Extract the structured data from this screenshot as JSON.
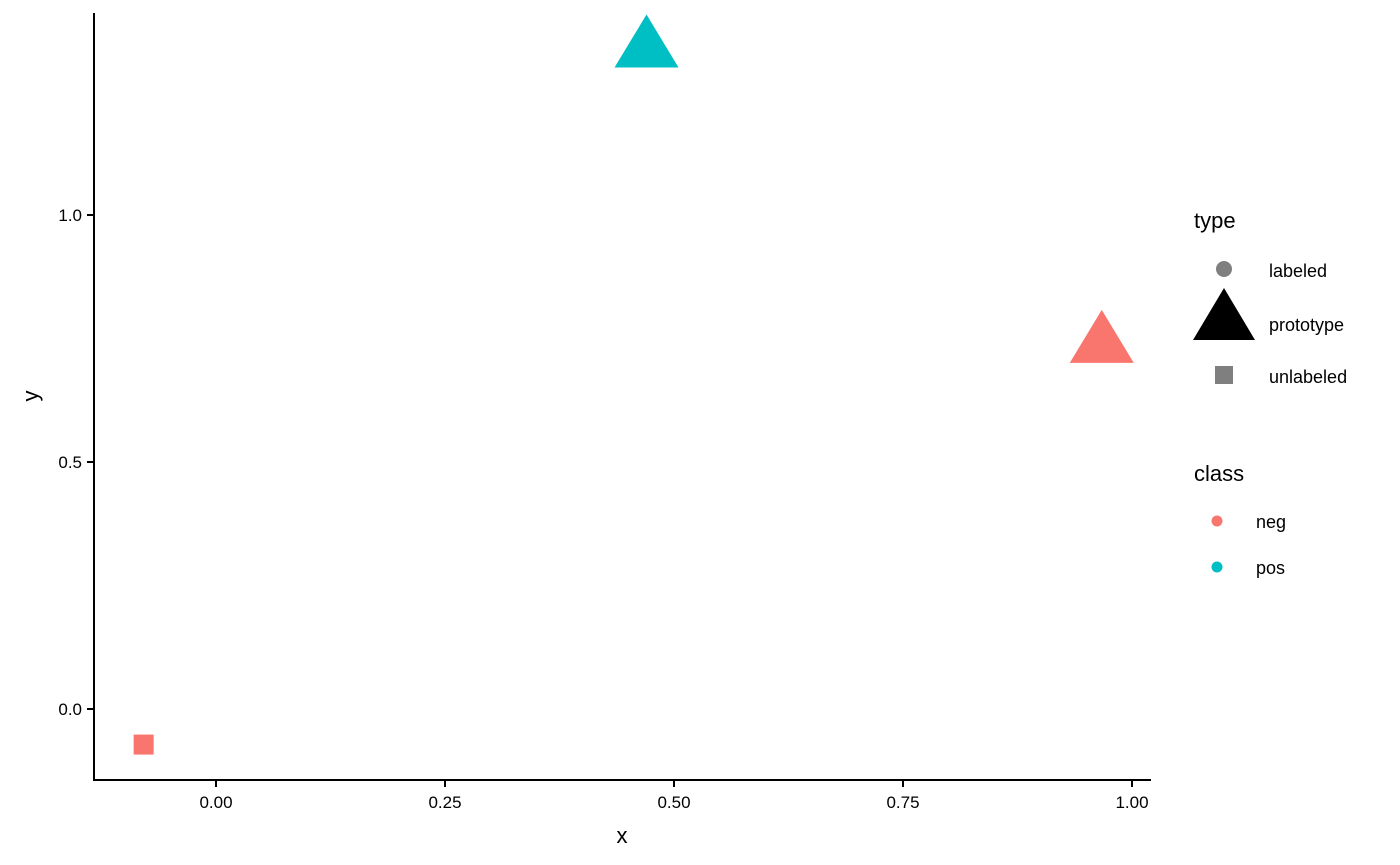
{
  "chart_data": {
    "type": "scatter",
    "xlabel": "x",
    "ylabel": "y",
    "xlim": [
      -0.135,
      1.02
    ],
    "ylim": [
      -0.143,
      1.41
    ],
    "xticks": [
      "0.00",
      "0.25",
      "0.50",
      "0.75",
      "1.00"
    ],
    "yticks": [
      "0.0",
      "0.5",
      "1.0"
    ],
    "grid": false,
    "legend_placement": "right",
    "colors": {
      "neg": "#F8766D",
      "pos": "#00BFC4"
    },
    "points": [
      {
        "x": -0.079,
        "y": -0.072,
        "type": "labeled",
        "class": "pos"
      },
      {
        "x": -0.079,
        "y": -0.072,
        "type": "unlabeled",
        "class": "neg"
      },
      {
        "x": 0.47,
        "y": 1.335,
        "type": "prototype",
        "class": "pos"
      },
      {
        "x": 0.967,
        "y": 0.737,
        "type": "prototype",
        "class": "neg"
      }
    ],
    "legend": {
      "type": {
        "title": "type",
        "items": [
          "labeled",
          "prototype",
          "unlabeled"
        ]
      },
      "class": {
        "title": "class",
        "items": [
          "neg",
          "pos"
        ]
      }
    }
  }
}
